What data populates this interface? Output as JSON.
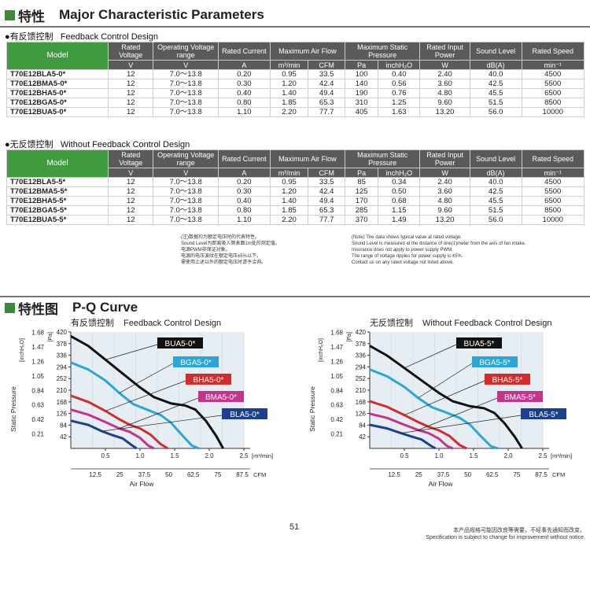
{
  "section1": {
    "title_cn": "特性",
    "title_en": "Major Characteristic Parameters"
  },
  "table_fb": {
    "caption_cn": "●有反馈控制",
    "caption_en": "Feedback Control Design",
    "rows": [
      [
        "T70E12BLA5-0*",
        "12",
        "7.0～13.8",
        "0.20",
        "0.95",
        "33.5",
        "100",
        "0.40",
        "2.40",
        "40.0",
        "4500"
      ],
      [
        "T70E12BMA5-0*",
        "12",
        "7.0～13.8",
        "0.30",
        "1.20",
        "42.4",
        "140",
        "0.56",
        "3.60",
        "42.5",
        "5500"
      ],
      [
        "T70E12BHA5-0*",
        "12",
        "7.0～13.8",
        "0.40",
        "1.40",
        "49.4",
        "190",
        "0.76",
        "4.80",
        "45.5",
        "6500"
      ],
      [
        "T70E12BGA5-0*",
        "12",
        "7.0～13.8",
        "0.80",
        "1.85",
        "65.3",
        "310",
        "1.25",
        "9.60",
        "51.5",
        "8500"
      ],
      [
        "T70E12BUA5-0*",
        "12",
        "7.0～13.8",
        "1.10",
        "2.20",
        "77.7",
        "405",
        "1.63",
        "13.20",
        "56.0",
        "10000"
      ]
    ]
  },
  "table_nofb": {
    "caption_cn": "●无反馈控制",
    "caption_en": "Without Feedback Control Design",
    "rows": [
      [
        "T70E12BLA5-5*",
        "12",
        "7.0～13.8",
        "0.20",
        "0.95",
        "33.5",
        "85",
        "0.34",
        "2.40",
        "40.0",
        "4500"
      ],
      [
        "T70E12BMA5-5*",
        "12",
        "7.0～13.8",
        "0.30",
        "1.20",
        "42.4",
        "125",
        "0.50",
        "3.60",
        "42.5",
        "5500"
      ],
      [
        "T70E12BHA5-5*",
        "12",
        "7.0～13.8",
        "0.40",
        "1.40",
        "49.4",
        "170",
        "0.68",
        "4.80",
        "45.5",
        "6500"
      ],
      [
        "T70E12BGA5-5*",
        "12",
        "7.0～13.8",
        "0.80",
        "1.85",
        "65.3",
        "285",
        "1.15",
        "9.60",
        "51.5",
        "8500"
      ],
      [
        "T70E12BUA5-5*",
        "12",
        "7.0～13.8",
        "1.10",
        "2.20",
        "77.7",
        "370",
        "1.49",
        "13.20",
        "56.0",
        "10000"
      ]
    ]
  },
  "headers": {
    "model": "Model",
    "rated_voltage": "Rated Voltage",
    "operating_voltage": "Operating Voltage range",
    "rated_current": "Rated Current",
    "max_airflow": "Maximum Air Flow",
    "max_static": "Maximum Static Pressure",
    "rated_power": "Rated Input Power",
    "sound": "Sound Level",
    "speed": "Rated Speed",
    "units": [
      "V",
      "V",
      "A",
      "m³/min",
      "CFM",
      "Pa",
      "inchH₂O",
      "W",
      "dB(A)",
      "min⁻¹"
    ]
  },
  "notes_cn": [
    "(注)数据均为额定电压时的代表特性。",
    "Sound Level为距离吸入侧表面1m处的测定值。",
    "电源PWM非保证对象。",
    "电源的电压波纹在额定电压±5%以下。",
    "需使用上述以外的额定电压时请予洽询。"
  ],
  "notes_en": [
    "(Note) The data shows typical value at rated voltage.",
    "Sound Level is measured at the distance of one(1)meter from the axis of fan intake.",
    "Insurance does not apply to power supply PWM.",
    "The range of voltage ripples for power supply is ±5%.",
    "Contact us on any rated voltage not listed above."
  ],
  "section2": {
    "title_cn": "特性图",
    "title_en": "P-Q Curve"
  },
  "chart_data": [
    {
      "type": "line",
      "title_cn": "有反馈控制",
      "title": "Feedback Control Design",
      "xlabel": "Air Flow",
      "ylabel": "Static Pressure",
      "x_unit": "[m³/min]",
      "x2_unit": "CFM",
      "y_unit": "[Pa]",
      "y2_unit": "[inchH₂O]",
      "xlim": [
        0,
        2.5
      ],
      "ylim": [
        0,
        420
      ],
      "x_ticks": [
        "0.5",
        "1.0",
        "1.5",
        "2.0",
        "2.5"
      ],
      "x2_ticks": [
        "12.5",
        "25",
        "37.5",
        "50",
        "62.5",
        "75",
        "87.5"
      ],
      "y_ticks": [
        "42",
        "84",
        "126",
        "168",
        "210",
        "252",
        "294",
        "336",
        "378",
        "420"
      ],
      "y2_ticks": [
        "0.21",
        "0.42",
        "0.63",
        "0.84",
        "1.05",
        "1.26",
        "1.47",
        "1.68"
      ],
      "series": [
        {
          "name": "BUA5-0*",
          "color": "#111111",
          "points": [
            [
              0,
              405
            ],
            [
              0.25,
              370
            ],
            [
              0.5,
              320
            ],
            [
              0.75,
              270
            ],
            [
              1.0,
              220
            ],
            [
              1.2,
              185
            ],
            [
              1.45,
              162
            ],
            [
              1.65,
              155
            ],
            [
              1.8,
              140
            ],
            [
              1.95,
              100
            ],
            [
              2.1,
              45
            ],
            [
              2.2,
              0
            ]
          ]
        },
        {
          "name": "BGA5-0*",
          "color": "#2aa6d8",
          "points": [
            [
              0,
              310
            ],
            [
              0.25,
              285
            ],
            [
              0.5,
              245
            ],
            [
              0.7,
              200
            ],
            [
              0.9,
              160
            ],
            [
              1.1,
              140
            ],
            [
              1.3,
              120
            ],
            [
              1.45,
              92
            ],
            [
              1.6,
              50
            ],
            [
              1.75,
              10
            ],
            [
              1.85,
              0
            ]
          ]
        },
        {
          "name": "BHA5-0*",
          "color": "#d42b2b",
          "points": [
            [
              0,
              190
            ],
            [
              0.25,
              168
            ],
            [
              0.5,
              135
            ],
            [
              0.7,
              105
            ],
            [
              0.85,
              85
            ],
            [
              1.0,
              72
            ],
            [
              1.15,
              50
            ],
            [
              1.3,
              15
            ],
            [
              1.4,
              0
            ]
          ]
        },
        {
          "name": "BMA5-0*",
          "color": "#c7338a",
          "points": [
            [
              0,
              140
            ],
            [
              0.25,
              122
            ],
            [
              0.5,
              95
            ],
            [
              0.7,
              72
            ],
            [
              0.85,
              60
            ],
            [
              1.0,
              38
            ],
            [
              1.12,
              10
            ],
            [
              1.2,
              0
            ]
          ]
        },
        {
          "name": "BLA5-0*",
          "color": "#1c3f8f",
          "points": [
            [
              0,
              100
            ],
            [
              0.25,
              85
            ],
            [
              0.45,
              62
            ],
            [
              0.6,
              48
            ],
            [
              0.75,
              36
            ],
            [
              0.88,
              12
            ],
            [
              0.95,
              0
            ]
          ]
        }
      ]
    },
    {
      "type": "line",
      "title_cn": "无反馈控制",
      "title": "Without Feedback Control Design",
      "xlabel": "Air Flow",
      "ylabel": "Static Pressure",
      "x_unit": "[m³/min]",
      "x2_unit": "CFM",
      "y_unit": "[Pa]",
      "y2_unit": "[inchH₂O]",
      "xlim": [
        0,
        2.5
      ],
      "ylim": [
        0,
        420
      ],
      "x_ticks": [
        "0.5",
        "1.0",
        "1.5",
        "2.0",
        "2.5"
      ],
      "x2_ticks": [
        "12.5",
        "25",
        "37.5",
        "50",
        "62.5",
        "75",
        "87.5"
      ],
      "y_ticks": [
        "42",
        "84",
        "126",
        "168",
        "210",
        "252",
        "294",
        "336",
        "378",
        "420"
      ],
      "y2_ticks": [
        "0.21",
        "0.42",
        "0.63",
        "0.84",
        "1.05",
        "1.26",
        "1.47",
        "1.68"
      ],
      "series": [
        {
          "name": "BUA5-5*",
          "color": "#111111",
          "points": [
            [
              0,
              370
            ],
            [
              0.25,
              335
            ],
            [
              0.5,
              290
            ],
            [
              0.75,
              245
            ],
            [
              1.0,
              200
            ],
            [
              1.2,
              170
            ],
            [
              1.45,
              152
            ],
            [
              1.65,
              145
            ],
            [
              1.8,
              128
            ],
            [
              1.95,
              90
            ],
            [
              2.1,
              40
            ],
            [
              2.2,
              0
            ]
          ]
        },
        {
          "name": "BGA5-5*",
          "color": "#2aa6d8",
          "points": [
            [
              0,
              285
            ],
            [
              0.25,
              260
            ],
            [
              0.5,
              222
            ],
            [
              0.7,
              182
            ],
            [
              0.9,
              148
            ],
            [
              1.1,
              130
            ],
            [
              1.3,
              110
            ],
            [
              1.45,
              85
            ],
            [
              1.6,
              45
            ],
            [
              1.75,
              8
            ],
            [
              1.85,
              0
            ]
          ]
        },
        {
          "name": "BHA5-5*",
          "color": "#d42b2b",
          "points": [
            [
              0,
              170
            ],
            [
              0.25,
              150
            ],
            [
              0.5,
              120
            ],
            [
              0.7,
              95
            ],
            [
              0.85,
              78
            ],
            [
              1.0,
              65
            ],
            [
              1.15,
              45
            ],
            [
              1.3,
              12
            ],
            [
              1.4,
              0
            ]
          ]
        },
        {
          "name": "BMA5-5*",
          "color": "#c7338a",
          "points": [
            [
              0,
              125
            ],
            [
              0.25,
              110
            ],
            [
              0.5,
              85
            ],
            [
              0.7,
              66
            ],
            [
              0.85,
              55
            ],
            [
              1.0,
              35
            ],
            [
              1.12,
              8
            ],
            [
              1.2,
              0
            ]
          ]
        },
        {
          "name": "BLA5-5*",
          "color": "#1c3f8f",
          "points": [
            [
              0,
              85
            ],
            [
              0.25,
              72
            ],
            [
              0.45,
              55
            ],
            [
              0.6,
              43
            ],
            [
              0.75,
              32
            ],
            [
              0.88,
              10
            ],
            [
              0.95,
              0
            ]
          ]
        }
      ]
    }
  ],
  "page_number": "51",
  "footer_cn": "本产品规格可能因改良等需要，不经事先通知而改变。",
  "footer_en": "Specification is subject to change for improvement without notice."
}
